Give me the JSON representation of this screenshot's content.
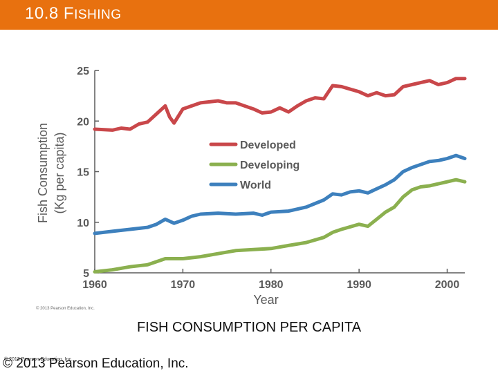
{
  "slide": {
    "title_num": "10.8 ",
    "title_first": "F",
    "title_rest": "ISHING",
    "caption": "FISH CONSUMPTION PER CAPITA",
    "figure_copyright": "© 2013 Pearson Education, Inc.",
    "footer_copyright": "© 2013 Pearson Education, Inc.",
    "footer_tiny": "© 2013 Pearson Education, Inc.",
    "accent_color": "#e8710f"
  },
  "chart_data": {
    "type": "line",
    "title": "",
    "xlabel": "Year",
    "ylabel_line1": "Fish Consumption",
    "ylabel_line2": "(Kg per capita)",
    "xlim": [
      1960,
      2002
    ],
    "ylim": [
      5,
      25
    ],
    "xticks": [
      1960,
      1970,
      1980,
      1990,
      2000
    ],
    "yticks": [
      5,
      10,
      15,
      20,
      25
    ],
    "grid": false,
    "legend_position": "center-right",
    "series": [
      {
        "name": "Developed",
        "color": "#c9474a",
        "x": [
          1960,
          1962,
          1963,
          1964,
          1965,
          1966,
          1967,
          1968,
          1968.5,
          1969,
          1970,
          1972,
          1974,
          1975,
          1976,
          1977,
          1978,
          1979,
          1980,
          1981,
          1982,
          1983,
          1984,
          1985,
          1986,
          1987,
          1988,
          1990,
          1991,
          1992,
          1993,
          1994,
          1995,
          1996,
          1997,
          1998,
          1999,
          2000,
          2001,
          2002
        ],
        "values": [
          19.2,
          19.1,
          19.3,
          19.2,
          19.7,
          19.9,
          20.7,
          21.5,
          20.4,
          19.8,
          21.2,
          21.8,
          22.0,
          21.8,
          21.8,
          21.5,
          21.2,
          20.8,
          20.9,
          21.3,
          20.9,
          21.5,
          22.0,
          22.3,
          22.2,
          23.5,
          23.4,
          22.9,
          22.5,
          22.8,
          22.5,
          22.6,
          23.4,
          23.6,
          23.8,
          24.0,
          23.6,
          23.8,
          24.2,
          24.2
        ]
      },
      {
        "name": "Developing",
        "color": "#8bb04f",
        "x": [
          1960,
          1962,
          1964,
          1966,
          1968,
          1970,
          1972,
          1974,
          1976,
          1978,
          1980,
          1982,
          1984,
          1986,
          1987,
          1988,
          1990,
          1991,
          1992,
          1993,
          1994,
          1995,
          1996,
          1997,
          1998,
          1999,
          2000,
          2001,
          2002
        ],
        "values": [
          5.1,
          5.3,
          5.6,
          5.8,
          6.4,
          6.4,
          6.6,
          6.9,
          7.2,
          7.3,
          7.4,
          7.7,
          8.0,
          8.5,
          9.0,
          9.3,
          9.8,
          9.6,
          10.3,
          11.0,
          11.5,
          12.5,
          13.2,
          13.5,
          13.6,
          13.8,
          14.0,
          14.2,
          14.0
        ]
      },
      {
        "name": "World",
        "color": "#3d80bd",
        "x": [
          1960,
          1962,
          1964,
          1966,
          1967,
          1968,
          1969,
          1970,
          1971,
          1972,
          1974,
          1976,
          1978,
          1979,
          1980,
          1982,
          1984,
          1986,
          1987,
          1988,
          1989,
          1990,
          1991,
          1992,
          1993,
          1994,
          1995,
          1996,
          1997,
          1998,
          1999,
          2000,
          2001,
          2002
        ],
        "values": [
          8.9,
          9.1,
          9.3,
          9.5,
          9.8,
          10.3,
          9.9,
          10.2,
          10.6,
          10.8,
          10.9,
          10.8,
          10.9,
          10.7,
          11.0,
          11.1,
          11.5,
          12.2,
          12.8,
          12.7,
          13.0,
          13.1,
          12.9,
          13.3,
          13.7,
          14.2,
          15.0,
          15.4,
          15.7,
          16.0,
          16.1,
          16.3,
          16.6,
          16.3
        ]
      }
    ]
  }
}
